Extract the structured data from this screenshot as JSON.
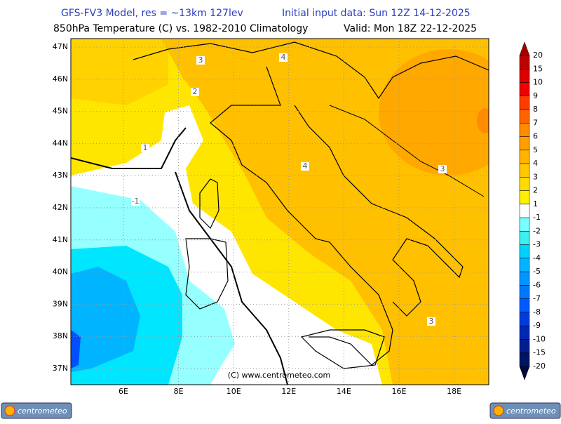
{
  "header": {
    "model": "GFS-FV3 Model, res = ~13km 127lev",
    "init": "Initial input data: Sun 12Z 14-12-2025",
    "field": "850hPa Temperature (C) vs. 1982-2010 Climatology",
    "valid": "Valid: Mon 18Z 22-12-2025"
  },
  "map": {
    "lat_labels": [
      "47N",
      "46N",
      "45N",
      "44N",
      "43N",
      "42N",
      "41N",
      "40N",
      "39N",
      "38N",
      "37N"
    ],
    "lon_labels": [
      "6E",
      "8E",
      "10E",
      "12E",
      "14E",
      "16E",
      "18E"
    ],
    "contour_labels": [
      "3",
      "4",
      "2",
      "1",
      "-1",
      "4",
      "3",
      "3"
    ],
    "credit": "(C) www.centrometeo.com"
  },
  "legend": {
    "labels": [
      20,
      15,
      10,
      9,
      8,
      7,
      6,
      5,
      4,
      3,
      2,
      1,
      -1,
      -2,
      -3,
      -4,
      -5,
      -6,
      -7,
      -8,
      -9,
      -10,
      -15,
      -20
    ],
    "colors": [
      "#a50000",
      "#be0000",
      "#dc0000",
      "#f00000",
      "#ff3c00",
      "#ff6400",
      "#ff8c00",
      "#ffa000",
      "#ffb400",
      "#ffc800",
      "#ffdc00",
      "#fff000",
      "#ffffff",
      "#78ffff",
      "#3cf0f0",
      "#00d2ff",
      "#00b4ff",
      "#0096ff",
      "#0078ff",
      "#005aff",
      "#003cdc",
      "#0028b4",
      "#001e8c",
      "#001464",
      "#000a3c"
    ]
  },
  "logos": [
    "centrometeo",
    "centrometeo"
  ]
}
